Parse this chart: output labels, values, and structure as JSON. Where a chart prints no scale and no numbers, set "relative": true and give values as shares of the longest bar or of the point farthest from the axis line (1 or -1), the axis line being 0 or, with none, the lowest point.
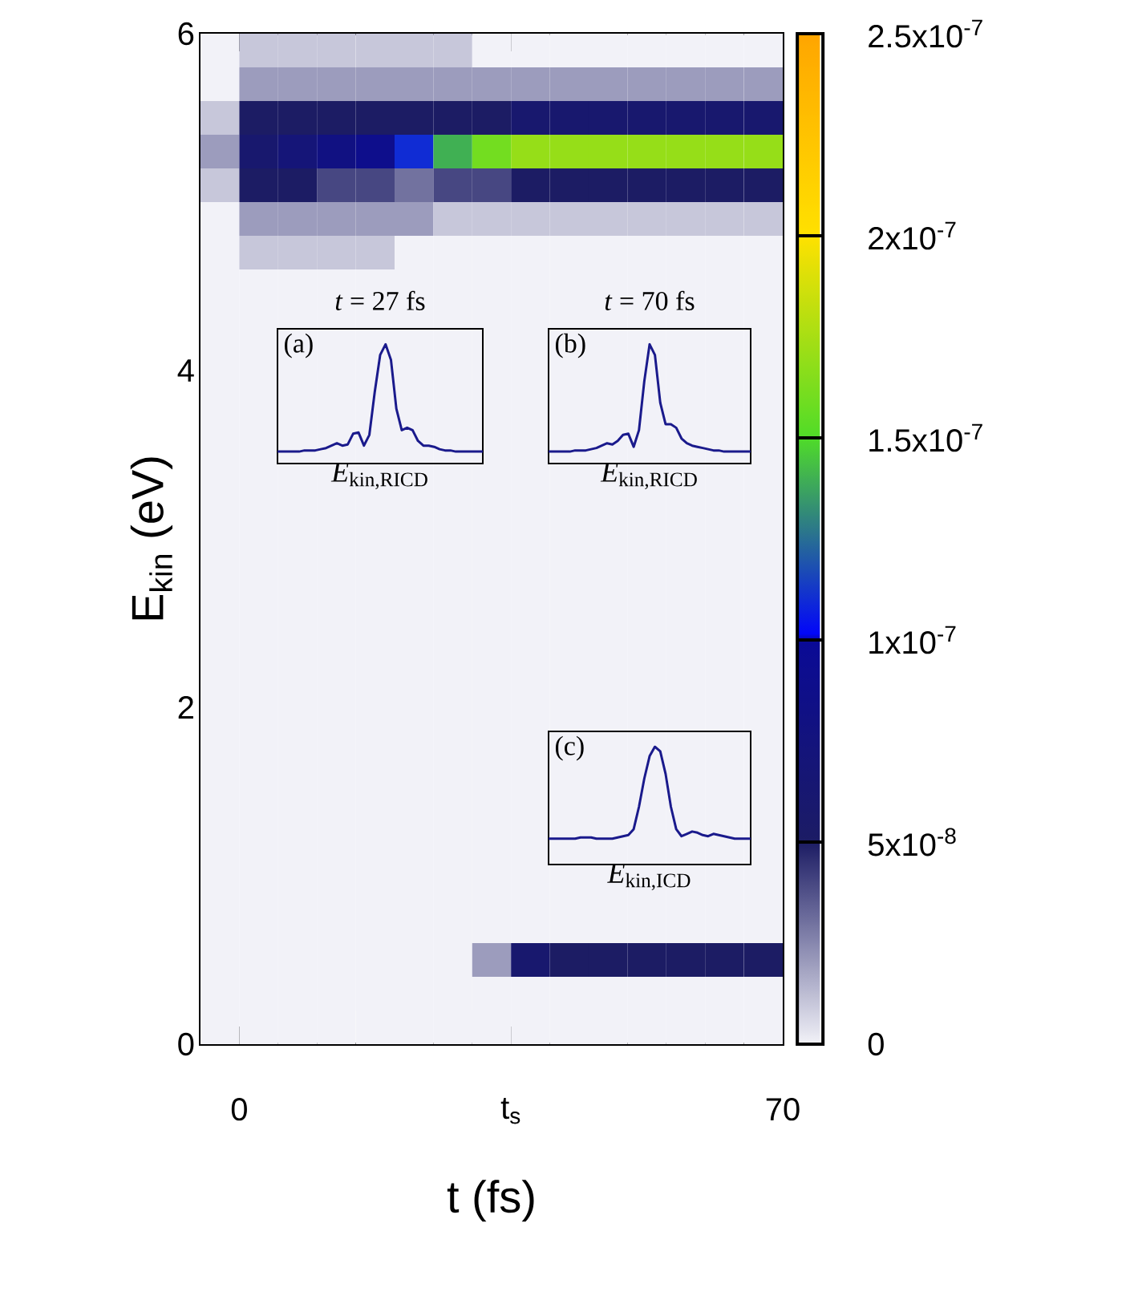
{
  "chart_data": [
    {
      "type": "heatmap",
      "xlabel": "t (fs)",
      "ylabel": "E$_{kin}$ (eV)",
      "x": [
        -2.5,
        2.5,
        7.5,
        12.5,
        17.5,
        22.5,
        27.5,
        32.5,
        37.5,
        42.5,
        47.5,
        52.5,
        57.5,
        62.5,
        67.5
      ],
      "y": [
        5.9,
        5.7,
        5.5,
        5.3,
        5.1,
        4.9,
        4.7,
        4.5,
        4.3,
        4.1,
        3.9,
        3.7,
        3.5,
        3.3,
        3.1,
        2.9,
        2.7,
        2.5,
        2.3,
        2.1,
        1.9,
        1.7,
        1.5,
        1.3,
        1.1,
        0.9,
        0.7,
        0.5,
        0.3,
        0.1
      ],
      "cells": [
        [
          0,
          1e-08,
          1e-08,
          1e-08,
          1e-08,
          1e-08,
          1e-08,
          0,
          0,
          0,
          0,
          0,
          0,
          0,
          0
        ],
        [
          0,
          2e-08,
          2e-08,
          2e-08,
          2e-08,
          2e-08,
          2e-08,
          2e-08,
          2e-08,
          2e-08,
          2e-08,
          2e-08,
          2e-08,
          2e-08,
          2e-08
        ],
        [
          1e-08,
          5e-08,
          5e-08,
          5e-08,
          5e-08,
          5e-08,
          5e-08,
          5e-08,
          6e-08,
          6e-08,
          6e-08,
          6e-08,
          6e-08,
          6e-08,
          6e-08
        ],
        [
          2e-08,
          6e-08,
          7e-08,
          8e-08,
          9e-08,
          1.1e-07,
          1.4e-07,
          1.6e-07,
          1.7e-07,
          1.7e-07,
          1.7e-07,
          1.7e-07,
          1.7e-07,
          1.7e-07,
          1.7e-07
        ],
        [
          1e-08,
          5e-08,
          5e-08,
          4e-08,
          4e-08,
          3e-08,
          4e-08,
          4e-08,
          5e-08,
          5e-08,
          5e-08,
          5e-08,
          5e-08,
          5e-08,
          5e-08
        ],
        [
          0,
          2e-08,
          2e-08,
          2e-08,
          2e-08,
          2e-08,
          1e-08,
          1e-08,
          1e-08,
          1e-08,
          1e-08,
          1e-08,
          1e-08,
          1e-08,
          1e-08
        ],
        [
          0,
          1e-08,
          1e-08,
          1e-08,
          1e-08,
          0,
          0,
          0,
          0,
          0,
          0,
          0,
          0,
          0,
          0
        ],
        [
          0,
          0,
          0,
          0,
          0,
          0,
          0,
          0,
          0,
          0,
          0,
          0,
          0,
          0,
          0
        ],
        [
          0,
          0,
          0,
          0,
          0,
          0,
          0,
          0,
          0,
          0,
          0,
          0,
          0,
          0,
          0
        ],
        [
          0,
          0,
          0,
          0,
          0,
          0,
          0,
          0,
          0,
          0,
          0,
          0,
          0,
          0,
          0
        ],
        [
          0,
          0,
          0,
          0,
          0,
          0,
          0,
          0,
          0,
          0,
          0,
          0,
          0,
          0,
          0
        ],
        [
          0,
          0,
          0,
          0,
          0,
          0,
          0,
          0,
          0,
          0,
          0,
          0,
          0,
          0,
          0
        ],
        [
          0,
          0,
          0,
          0,
          0,
          0,
          0,
          0,
          0,
          0,
          0,
          0,
          0,
          0,
          0
        ],
        [
          0,
          0,
          0,
          0,
          0,
          0,
          0,
          0,
          0,
          0,
          0,
          0,
          0,
          0,
          0
        ],
        [
          0,
          0,
          0,
          0,
          0,
          0,
          0,
          0,
          0,
          0,
          0,
          0,
          0,
          0,
          0
        ],
        [
          0,
          0,
          0,
          0,
          0,
          0,
          0,
          0,
          0,
          0,
          0,
          0,
          0,
          0,
          0
        ],
        [
          0,
          0,
          0,
          0,
          0,
          0,
          0,
          0,
          0,
          0,
          0,
          0,
          0,
          0,
          0
        ],
        [
          0,
          0,
          0,
          0,
          0,
          0,
          0,
          0,
          0,
          0,
          0,
          0,
          0,
          0,
          0
        ],
        [
          0,
          0,
          0,
          0,
          0,
          0,
          0,
          0,
          0,
          0,
          0,
          0,
          0,
          0,
          0
        ],
        [
          0,
          0,
          0,
          0,
          0,
          0,
          0,
          0,
          0,
          0,
          0,
          0,
          0,
          0,
          0
        ],
        [
          0,
          0,
          0,
          0,
          0,
          0,
          0,
          0,
          0,
          0,
          0,
          0,
          0,
          0,
          0
        ],
        [
          0,
          0,
          0,
          0,
          0,
          0,
          0,
          0,
          0,
          0,
          0,
          0,
          0,
          0,
          0
        ],
        [
          0,
          0,
          0,
          0,
          0,
          0,
          0,
          0,
          0,
          0,
          0,
          0,
          0,
          0,
          0
        ],
        [
          0,
          0,
          0,
          0,
          0,
          0,
          0,
          0,
          0,
          0,
          0,
          0,
          0,
          0,
          0
        ],
        [
          0,
          0,
          0,
          0,
          0,
          0,
          0,
          0,
          0,
          0,
          0,
          0,
          0,
          0,
          0
        ],
        [
          0,
          0,
          0,
          0,
          0,
          0,
          0,
          0,
          0,
          0,
          0,
          0,
          0,
          0,
          0
        ],
        [
          0,
          0,
          0,
          0,
          0,
          0,
          0,
          0,
          0,
          0,
          0,
          0,
          0,
          0,
          0
        ],
        [
          0,
          0,
          0,
          0,
          0,
          0,
          0,
          2e-08,
          6e-08,
          5e-08,
          5e-08,
          5e-08,
          5e-08,
          5e-08,
          5e-08
        ],
        [
          0,
          0,
          0,
          0,
          0,
          0,
          0,
          0,
          0,
          0,
          0,
          0,
          0,
          0,
          0
        ],
        [
          0,
          0,
          0,
          0,
          0,
          0,
          0,
          0,
          0,
          0,
          0,
          0,
          0,
          0,
          0
        ]
      ],
      "xlim": [
        -5,
        70
      ],
      "ylim": [
        0,
        6
      ],
      "xticks": [
        0,
        {
          "value": 35,
          "label": "t$_{s}$"
        },
        70
      ],
      "yticks": [
        0,
        2,
        4,
        6
      ],
      "clim": [
        0,
        2.5e-07
      ],
      "cticks": [
        0,
        {
          "value": 5e-08,
          "label": "5x10$^{-8}$"
        },
        {
          "value": 1e-07,
          "label": "1x10$^{-7}$"
        },
        {
          "value": 1.5e-07,
          "label": "1.5x10$^{-7}$"
        },
        {
          "value": 2e-07,
          "label": "2x10$^{-7}$"
        },
        {
          "value": 2.5e-07,
          "label": "2.5x10$^{-7}$"
        }
      ]
    },
    {
      "type": "line",
      "title": "*t* = 27 fs",
      "xlabel": "*E*$_{kin,RICD}$",
      "annotations": [
        "(a)"
      ],
      "relative": true,
      "categories": [
        null,
        null,
        null,
        null,
        null,
        null,
        null,
        null,
        null,
        null,
        null,
        null,
        null,
        null,
        null,
        null,
        null,
        null,
        null,
        null,
        null,
        null,
        null,
        null,
        null,
        null,
        null,
        null,
        null,
        null,
        null,
        null,
        null,
        null,
        null,
        null,
        null,
        null,
        null
      ],
      "series": [
        {
          "color": "#1a1a8c",
          "values": [
            0.1,
            0.1,
            0.1,
            0.1,
            0.1,
            0.11,
            0.11,
            0.11,
            0.12,
            0.13,
            0.15,
            0.17,
            0.15,
            0.16,
            0.25,
            0.26,
            0.15,
            0.24,
            0.6,
            0.91,
            1.0,
            0.87,
            0.46,
            0.28,
            0.3,
            0.28,
            0.19,
            0.15,
            0.15,
            0.14,
            0.12,
            0.11,
            0.11,
            0.1,
            0.1,
            0.1,
            0.1,
            0.1,
            0.1
          ]
        }
      ]
    },
    {
      "type": "line",
      "title": "*t* = 70 fs",
      "xlabel": "*E*$_{kin,RICD}$",
      "annotations": [
        "(b)"
      ],
      "relative": true,
      "categories": [
        null,
        null,
        null,
        null,
        null,
        null,
        null,
        null,
        null,
        null,
        null,
        null,
        null,
        null,
        null,
        null,
        null,
        null,
        null,
        null,
        null,
        null,
        null,
        null,
        null,
        null,
        null,
        null,
        null,
        null,
        null,
        null,
        null,
        null,
        null,
        null,
        null,
        null,
        null
      ],
      "series": [
        {
          "color": "#1a1a8c",
          "values": [
            0.1,
            0.1,
            0.1,
            0.1,
            0.1,
            0.11,
            0.11,
            0.11,
            0.12,
            0.13,
            0.15,
            0.17,
            0.16,
            0.19,
            0.24,
            0.25,
            0.14,
            0.28,
            0.69,
            1.0,
            0.91,
            0.51,
            0.33,
            0.33,
            0.3,
            0.21,
            0.17,
            0.15,
            0.14,
            0.13,
            0.12,
            0.11,
            0.11,
            0.1,
            0.1,
            0.1,
            0.1,
            0.1,
            0.1
          ]
        }
      ]
    },
    {
      "type": "line",
      "xlabel": "*E*$_{kin,ICD}$",
      "annotations": [
        "(c)"
      ],
      "relative": true,
      "categories": [
        null,
        null,
        null,
        null,
        null,
        null,
        null,
        null,
        null,
        null,
        null,
        null,
        null,
        null,
        null,
        null,
        null,
        null,
        null,
        null,
        null,
        null,
        null,
        null,
        null,
        null,
        null,
        null,
        null,
        null,
        null,
        null,
        null,
        null,
        null,
        null,
        null,
        null,
        null
      ],
      "series": [
        {
          "color": "#1a1a8c",
          "values": [
            0.22,
            0.22,
            0.22,
            0.22,
            0.22,
            0.22,
            0.23,
            0.23,
            0.23,
            0.22,
            0.22,
            0.22,
            0.22,
            0.23,
            0.24,
            0.25,
            0.3,
            0.49,
            0.73,
            0.92,
            1.0,
            0.96,
            0.77,
            0.49,
            0.3,
            0.24,
            0.26,
            0.28,
            0.27,
            0.25,
            0.24,
            0.26,
            0.25,
            0.24,
            0.23,
            0.22,
            0.22,
            0.22,
            0.22
          ]
        }
      ]
    }
  ]
}
